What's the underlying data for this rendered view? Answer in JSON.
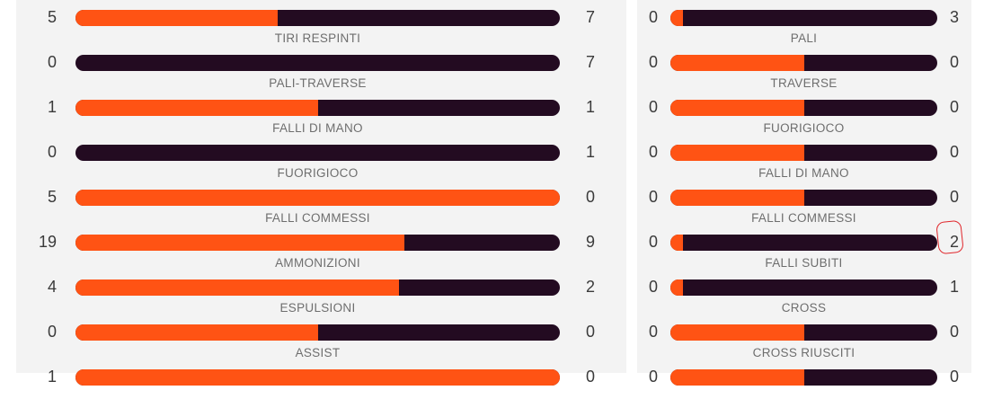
{
  "colors": {
    "home": "#ff5314",
    "away": "#230b21",
    "panel_bg": "#f3f3f3",
    "highlight": "#e0262b"
  },
  "left_panel": {
    "rows": [
      {
        "label": "",
        "home": "5",
        "away": "7",
        "home_share": 0.417
      },
      {
        "label": "TIRI RESPINTI",
        "home": "0",
        "away": "7",
        "home_share": 0.0
      },
      {
        "label": "PALI-TRAVERSE",
        "home": "1",
        "away": "1",
        "home_share": 0.5
      },
      {
        "label": "FALLI DI MANO",
        "home": "0",
        "away": "1",
        "home_share": 0.0
      },
      {
        "label": "FUORIGIOCO",
        "home": "5",
        "away": "0",
        "home_share": 1.0
      },
      {
        "label": "FALLI COMMESSI",
        "home": "19",
        "away": "9",
        "home_share": 0.679
      },
      {
        "label": "AMMONIZIONI",
        "home": "4",
        "away": "2",
        "home_share": 0.667
      },
      {
        "label": "ESPULSIONI",
        "home": "0",
        "away": "0",
        "home_share": 0.5
      },
      {
        "label": "ASSIST",
        "home": "1",
        "away": "0",
        "home_share": 1.0
      }
    ]
  },
  "right_panel": {
    "rows": [
      {
        "label": "",
        "home": "0",
        "away": "3",
        "home_share": 0.0
      },
      {
        "label": "PALI",
        "home": "0",
        "away": "0",
        "home_share": 0.5
      },
      {
        "label": "TRAVERSE",
        "home": "0",
        "away": "0",
        "home_share": 0.5
      },
      {
        "label": "FUORIGIOCO",
        "home": "0",
        "away": "0",
        "home_share": 0.5
      },
      {
        "label": "FALLI DI MANO",
        "home": "0",
        "away": "0",
        "home_share": 0.5
      },
      {
        "label": "FALLI COMMESSI",
        "home": "0",
        "away": "2",
        "home_share": 0.0
      },
      {
        "label": "FALLI SUBITI",
        "home": "0",
        "away": "1",
        "home_share": 0.0
      },
      {
        "label": "CROSS",
        "home": "0",
        "away": "0",
        "home_share": 0.5
      },
      {
        "label": "CROSS RIUSCITI",
        "home": "0",
        "away": "0",
        "home_share": 0.5
      }
    ]
  }
}
